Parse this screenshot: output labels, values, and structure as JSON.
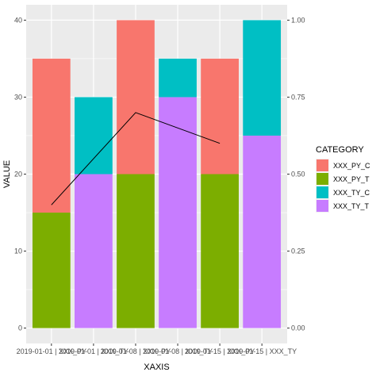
{
  "chart_data": {
    "type": "bar",
    "stacked": true,
    "categories": [
      "2019-01-01 | XXX_PY",
      "2019-01-01 | XXX_TY",
      "2019-01-08 | XXX_PY",
      "2019-01-08 | XXX_TY",
      "2019-01-15 | XXX_PY",
      "2019-01-15 | XXX_TY"
    ],
    "series": [
      {
        "name": "XXX_PY_C",
        "color": "#F8766D",
        "values": [
          20,
          0,
          20,
          0,
          15,
          0
        ]
      },
      {
        "name": "XXX_PY_T",
        "color": "#7CAE00",
        "values": [
          15,
          0,
          20,
          0,
          20,
          0
        ]
      },
      {
        "name": "XXX_TY_C",
        "color": "#00BFC4",
        "values": [
          0,
          10,
          0,
          5,
          0,
          15
        ]
      },
      {
        "name": "XXX_TY_T",
        "color": "#C77CFF",
        "values": [
          0,
          20,
          0,
          30,
          0,
          25
        ]
      }
    ],
    "stack_order_bottom_to_top": [
      "XXX_PY_T",
      "XXX_TY_T",
      "XXX_PY_C",
      "XXX_TY_C"
    ],
    "line": {
      "x_categories": [
        "2019-01-01 | XXX_PY",
        "2019-01-08 | XXX_PY",
        "2019-01-15 | XXX_PY"
      ],
      "values": [
        0.4,
        0.7,
        0.6
      ],
      "axis": "secondary",
      "color": "#000000"
    },
    "xlabel": "XAXIS",
    "ylabel": "VALUE",
    "ylim": [
      0,
      40
    ],
    "y_ticks": [
      0,
      10,
      20,
      30,
      40
    ],
    "y2lim": [
      0,
      1
    ],
    "y2_tick_labels": [
      "0.00",
      "0.25",
      "0.50",
      "0.75",
      "1.00"
    ],
    "legend_title": "CATEGORY",
    "legend_position": "right",
    "legend_entries": [
      "XXX_PY_C",
      "XXX_PY_T",
      "XXX_TY_C",
      "XXX_TY_T"
    ],
    "grid": true,
    "panel_color": "#EBEBEB",
    "grid_color": "#FFFFFF"
  }
}
